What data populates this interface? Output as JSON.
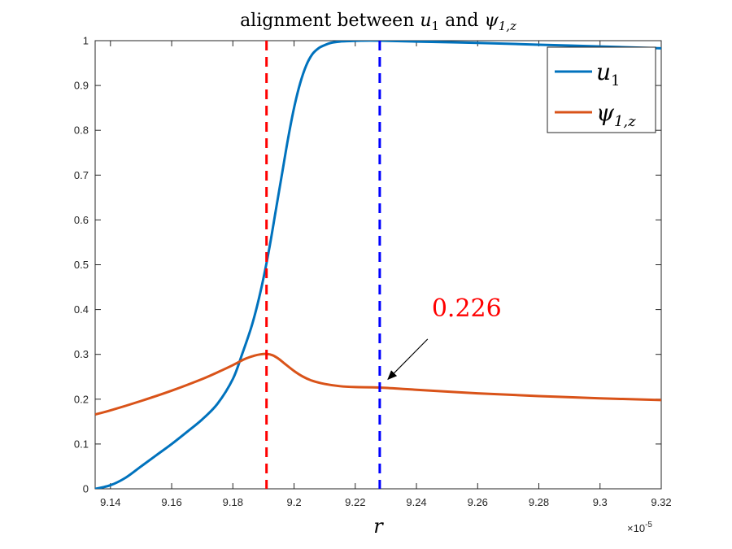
{
  "chart_data": {
    "type": "line",
    "title": "alignment between u₁ and ψ₁,z",
    "title_parts": {
      "prefix": "alignment between ",
      "var1": "u",
      "var1_sub": "1",
      "middle": " and ",
      "var2": "ψ",
      "var2_sub": "1,z"
    },
    "xlabel": "r",
    "x_exponent": "×10",
    "x_exponent_power": "-5",
    "xlim": [
      9.135,
      9.32
    ],
    "ylim": [
      0,
      1
    ],
    "xticks": [
      "9.14",
      "9.16",
      "9.18",
      "9.2",
      "9.22",
      "9.24",
      "9.26",
      "9.28",
      "9.3",
      "9.32"
    ],
    "xtick_values": [
      9.14,
      9.16,
      9.18,
      9.2,
      9.22,
      9.24,
      9.26,
      9.28,
      9.3,
      9.32
    ],
    "yticks": [
      "0",
      "0.1",
      "0.2",
      "0.3",
      "0.4",
      "0.5",
      "0.6",
      "0.7",
      "0.8",
      "0.9",
      "1"
    ],
    "ytick_values": [
      0,
      0.1,
      0.2,
      0.3,
      0.4,
      0.5,
      0.6,
      0.7,
      0.8,
      0.9,
      1
    ],
    "grid": false,
    "legend_position": "top-right",
    "series": [
      {
        "name": "u₁",
        "legend_base": "u",
        "legend_sub": "1",
        "color": "#0072BD",
        "x": [
          9.135,
          9.14,
          9.145,
          9.15,
          9.155,
          9.16,
          9.165,
          9.17,
          9.175,
          9.18,
          9.183,
          9.186,
          9.188,
          9.19,
          9.192,
          9.194,
          9.196,
          9.198,
          9.2,
          9.202,
          9.204,
          9.206,
          9.208,
          9.21,
          9.212,
          9.215,
          9.218,
          9.222,
          9.228,
          9.24,
          9.26,
          9.28,
          9.3,
          9.32
        ],
        "y": [
          0.0,
          0.008,
          0.025,
          0.05,
          0.075,
          0.1,
          0.127,
          0.155,
          0.19,
          0.245,
          0.3,
          0.36,
          0.41,
          0.47,
          0.54,
          0.62,
          0.7,
          0.78,
          0.85,
          0.905,
          0.945,
          0.97,
          0.983,
          0.99,
          0.995,
          0.998,
          0.999,
          1.0,
          1.0,
          0.998,
          0.995,
          0.991,
          0.987,
          0.983
        ]
      },
      {
        "name": "ψ₁,z",
        "legend_base": "ψ",
        "legend_sub": "1,z",
        "color": "#D95319",
        "x": [
          9.135,
          9.14,
          9.15,
          9.16,
          9.17,
          9.175,
          9.18,
          9.184,
          9.187,
          9.189,
          9.191,
          9.193,
          9.195,
          9.197,
          9.2,
          9.203,
          9.206,
          9.21,
          9.215,
          9.22,
          9.228,
          9.24,
          9.26,
          9.28,
          9.3,
          9.32
        ],
        "y": [
          0.166,
          0.175,
          0.196,
          0.219,
          0.245,
          0.26,
          0.276,
          0.29,
          0.297,
          0.3,
          0.301,
          0.298,
          0.29,
          0.279,
          0.263,
          0.25,
          0.241,
          0.234,
          0.229,
          0.227,
          0.226,
          0.221,
          0.213,
          0.207,
          0.202,
          0.198
        ]
      }
    ],
    "vlines": [
      {
        "x": 9.191,
        "color": "#FF0000",
        "style": "dashed"
      },
      {
        "x": 9.228,
        "color": "#0000FF",
        "style": "dashed"
      }
    ],
    "annotation": {
      "text": "0.226",
      "color": "#FF0000",
      "arrow_to": {
        "x": 9.228,
        "y": 0.226
      },
      "text_at": {
        "x": 9.245,
        "y": 0.385
      }
    }
  }
}
